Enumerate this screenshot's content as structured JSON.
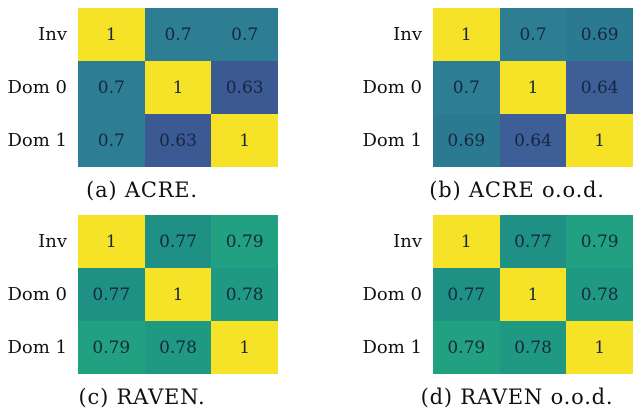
{
  "chart_data": [
    {
      "type": "heatmap",
      "title": "(a) ACRE.",
      "rows": [
        "Inv",
        "Dom 0",
        "Dom 1"
      ],
      "columns": [
        "Inv",
        "Dom 0",
        "Dom 1"
      ],
      "column_labels_shown": false,
      "values": [
        [
          1,
          0.7,
          0.7
        ],
        [
          0.7,
          1,
          0.63
        ],
        [
          0.7,
          0.63,
          1
        ]
      ],
      "colormap": "viridis",
      "cell_colors": [
        [
          "#f6e327",
          "#2d7e93",
          "#2d7e93"
        ],
        [
          "#2d7e93",
          "#f6e327",
          "#3b5a94"
        ],
        [
          "#2d7e93",
          "#3b5a94",
          "#f6e327"
        ]
      ]
    },
    {
      "type": "heatmap",
      "title": "(b) ACRE o.o.d.",
      "rows": [
        "Inv",
        "Dom 0",
        "Dom 1"
      ],
      "columns": [
        "Inv",
        "Dom 0",
        "Dom 1"
      ],
      "column_labels_shown": false,
      "values": [
        [
          1,
          0.7,
          0.69
        ],
        [
          0.7,
          1,
          0.64
        ],
        [
          0.69,
          0.64,
          1
        ]
      ],
      "colormap": "viridis",
      "cell_colors": [
        [
          "#f6e327",
          "#2d7e93",
          "#2c7a92"
        ],
        [
          "#2d7e93",
          "#f6e327",
          "#3d5e97"
        ],
        [
          "#2c7a92",
          "#3d5e97",
          "#f6e327"
        ]
      ]
    },
    {
      "type": "heatmap",
      "title": "(c) RAVEN.",
      "rows": [
        "Inv",
        "Dom 0",
        "Dom 1"
      ],
      "columns": [
        "Inv",
        "Dom 0",
        "Dom 1"
      ],
      "column_labels_shown": false,
      "values": [
        [
          1,
          0.77,
          0.79
        ],
        [
          0.77,
          1,
          0.78
        ],
        [
          0.79,
          0.78,
          1
        ]
      ],
      "colormap": "viridis",
      "cell_colors": [
        [
          "#f6e327",
          "#1e9184",
          "#21a181"
        ],
        [
          "#1e9184",
          "#f6e327",
          "#1f9981"
        ],
        [
          "#21a181",
          "#1f9981",
          "#f6e327"
        ]
      ]
    },
    {
      "type": "heatmap",
      "title": "(d) RAVEN o.o.d.",
      "rows": [
        "Inv",
        "Dom 0",
        "Dom 1"
      ],
      "columns": [
        "Inv",
        "Dom 0",
        "Dom 1"
      ],
      "column_labels_shown": false,
      "values": [
        [
          1,
          0.77,
          0.79
        ],
        [
          0.77,
          1,
          0.78
        ],
        [
          0.79,
          0.78,
          1
        ]
      ],
      "colormap": "viridis",
      "cell_colors": [
        [
          "#f6e327",
          "#1e9184",
          "#21a181"
        ],
        [
          "#1e9184",
          "#f6e327",
          "#1f9981"
        ],
        [
          "#21a181",
          "#1f9981",
          "#f6e327"
        ]
      ]
    }
  ],
  "style": {
    "background": "#ffffff",
    "cell_text_color": "#16263e",
    "label_text_color": "#111111"
  }
}
